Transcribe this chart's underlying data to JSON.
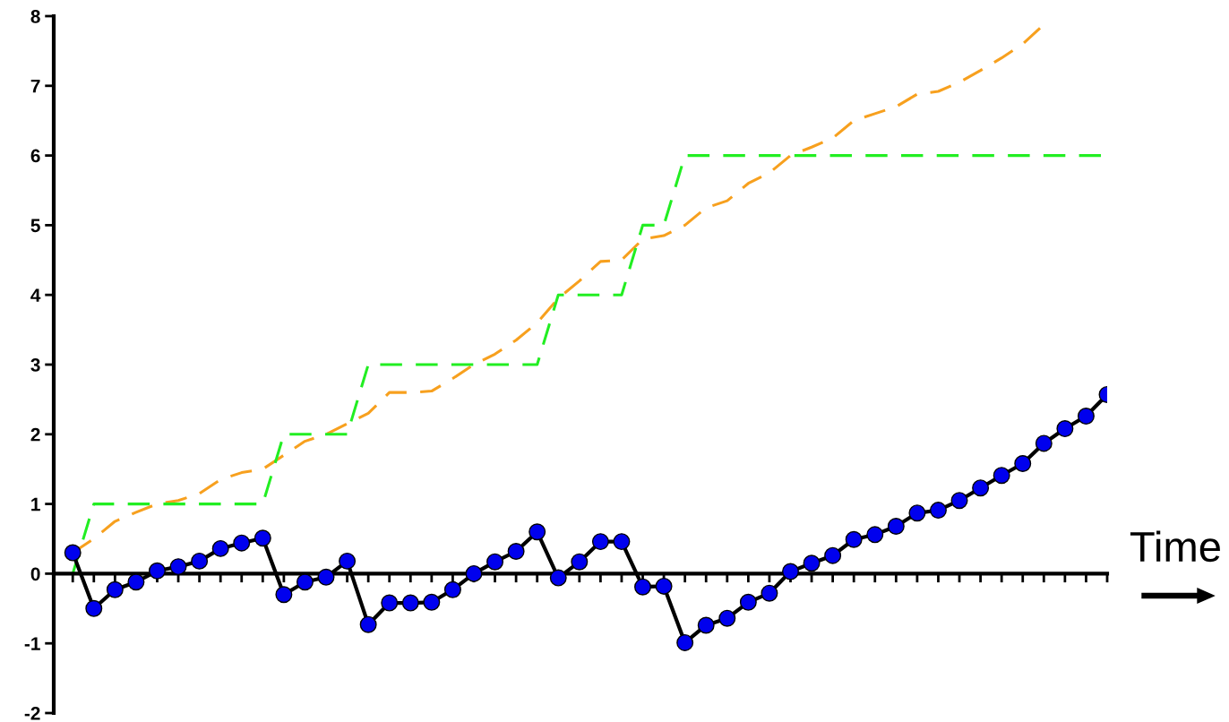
{
  "chart_data": {
    "type": "line",
    "xlabel": "Time",
    "categories": [
      null,
      null,
      null,
      null,
      null,
      null,
      null,
      null,
      null,
      null,
      null,
      null,
      null,
      null,
      null,
      null,
      null,
      null,
      null,
      null,
      null,
      null,
      null,
      null,
      null,
      null,
      null,
      null,
      null,
      null,
      null,
      null,
      null,
      null,
      null,
      null,
      null,
      null,
      null,
      null,
      null,
      null,
      null,
      null,
      null,
      null,
      null,
      null,
      null,
      null
    ],
    "ylim": [
      -2,
      8
    ],
    "yticks": [
      -2,
      -1,
      0,
      1,
      2,
      3,
      4,
      5,
      6,
      7,
      8
    ],
    "tick_labels": "y",
    "series": [
      {
        "color": "#f7a01e",
        "line_style": "dashed",
        "marker": "none",
        "values": [
          0.3,
          0.5,
          0.75,
          0.88,
          1.0,
          1.05,
          1.15,
          1.35,
          1.45,
          1.5,
          1.7,
          1.9,
          2.0,
          2.15,
          2.3,
          2.6,
          2.6,
          2.62,
          2.8,
          3.0,
          3.15,
          3.35,
          3.6,
          3.95,
          4.2,
          4.48,
          4.5,
          4.8,
          4.85,
          5.0,
          5.25,
          5.35,
          5.6,
          5.75,
          6.0,
          6.12,
          6.25,
          6.5,
          6.6,
          6.7,
          6.88,
          6.92,
          7.05,
          7.22,
          7.4,
          7.6,
          7.88,
          null,
          null,
          null
        ]
      },
      {
        "color": "#22ee22",
        "line_style": "dashed",
        "marker": "none",
        "values": [
          0,
          1,
          1,
          1,
          1,
          1,
          1,
          1,
          1,
          1,
          2,
          2,
          2,
          2,
          3,
          3,
          3,
          3,
          3,
          3,
          3,
          3,
          3,
          4,
          4,
          4,
          4,
          5,
          5,
          6,
          6,
          6,
          6,
          6,
          6,
          6,
          6,
          6,
          6,
          6,
          6,
          6,
          6,
          6,
          6,
          6,
          6,
          6,
          6,
          6
        ]
      },
      {
        "color": "#000000",
        "colors": [
          "#0000ee",
          "#0000ee",
          "#0000ee",
          "#0000ee",
          "#0000ee",
          "#0000ee",
          "#0000ee",
          "#0000ee",
          "#0000ee",
          "#0000ee",
          "#0000ee",
          "#0000ee",
          "#0000ee",
          "#0000ee",
          "#0000ee",
          "#0000ee",
          "#0000ee",
          "#0000ee",
          "#0000ee",
          "#0000ee",
          "#0000ee",
          "#0000ee",
          "#0000ee",
          "#0000ee",
          "#0000ee",
          "#0000ee",
          "#0000ee",
          "#0000ee",
          "#0000ee",
          "#0000ee",
          "#0000ee",
          "#0000ee",
          "#0000ee",
          "#0000ee",
          "#0000ee",
          "#0000ee",
          "#0000ee",
          "#0000ee",
          "#0000ee",
          "#0000ee",
          "#0000ee",
          "#0000ee",
          "#0000ee",
          "#0000ee",
          "#0000ee",
          "#0000ee",
          "#0000ee",
          "#0000ee",
          "#0000ee",
          "#0000ee"
        ],
        "line_style": "solid",
        "marker": "circle",
        "values": [
          0.3,
          -0.5,
          -0.23,
          -0.12,
          0.04,
          0.1,
          0.18,
          0.36,
          0.44,
          0.51,
          -0.3,
          -0.12,
          -0.05,
          0.18,
          -0.73,
          -0.42,
          -0.42,
          -0.41,
          -0.23,
          0.0,
          0.17,
          0.32,
          0.6,
          -0.06,
          0.17,
          0.46,
          0.46,
          -0.19,
          -0.18,
          -0.99,
          -0.74,
          -0.64,
          -0.41,
          -0.28,
          0.03,
          0.15,
          0.26,
          0.49,
          0.56,
          0.68,
          0.87,
          0.91,
          1.05,
          1.23,
          1.41,
          1.58,
          1.87,
          2.08,
          2.26,
          2.57
        ]
      }
    ]
  }
}
